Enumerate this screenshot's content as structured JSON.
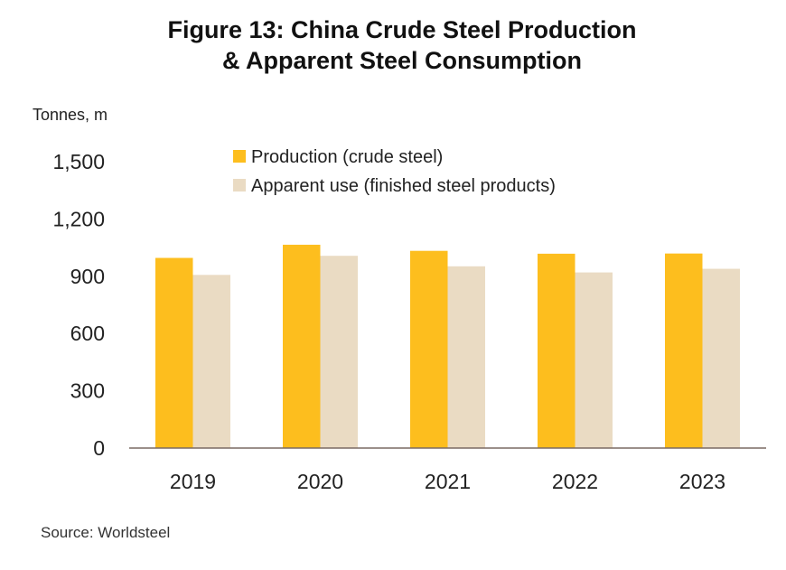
{
  "chart_data": {
    "type": "bar",
    "title_line1": "Figure 13: China Crude Steel Production",
    "title_line2": "& Apparent Steel Consumption",
    "ylabel": "Tonnes, m",
    "xlabel": "",
    "categories": [
      "2019",
      "2020",
      "2021",
      "2022",
      "2023"
    ],
    "series": [
      {
        "name": "Production (crude steel)",
        "color": "#FDBE1E",
        "values": [
          996,
          1065,
          1033,
          1018,
          1019
        ]
      },
      {
        "name": "Apparent use (finished steel products)",
        "color": "#EADBC3",
        "values": [
          907,
          1007,
          952,
          920,
          939
        ]
      }
    ],
    "ylim": [
      0,
      1500
    ],
    "yticks": [
      0,
      300,
      600,
      900,
      1200,
      1500
    ],
    "ytick_labels": [
      "0",
      "300",
      "600",
      "900",
      "1,200",
      "1,500"
    ],
    "grid": false,
    "legend_position": "top-center",
    "source": "Source: Worldsteel"
  }
}
